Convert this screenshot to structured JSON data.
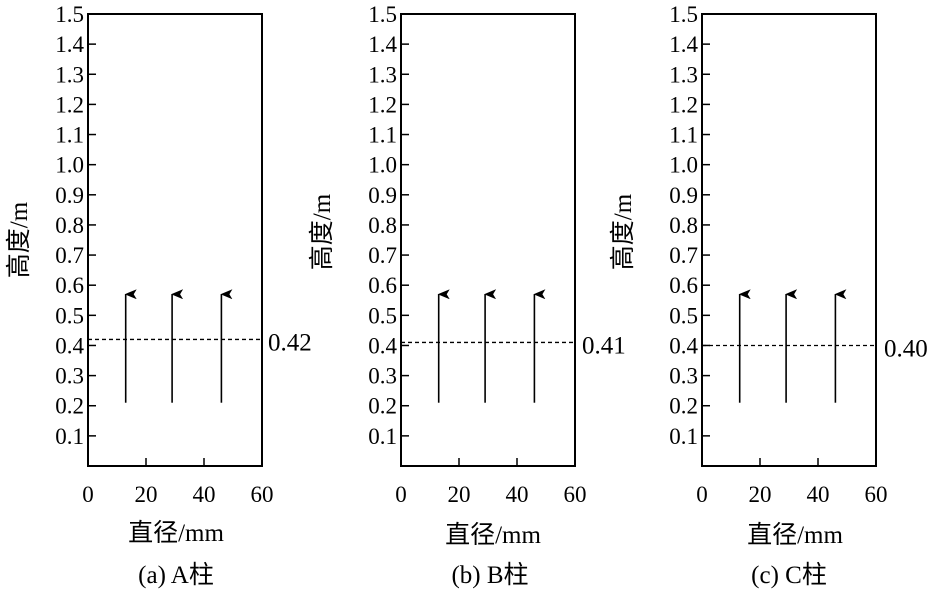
{
  "chart_data": [
    {
      "type": "line",
      "caption": "(a) A柱",
      "xlabel": "直径/mm",
      "ylabel": "高度/m",
      "xlim": [
        0,
        60
      ],
      "ylim": [
        0,
        1.5
      ],
      "xticks": [
        "0",
        "20",
        "40",
        "60"
      ],
      "yticks": [
        "0.1",
        "0.2",
        "0.3",
        "0.4",
        "0.5",
        "0.6",
        "0.7",
        "0.8",
        "0.9",
        "1.0",
        "1.1",
        "1.2",
        "1.3",
        "1.4",
        "1.5"
      ],
      "arrows": [
        {
          "x": 13,
          "from": 0.21,
          "to": 0.57
        },
        {
          "x": 29,
          "from": 0.21,
          "to": 0.57
        },
        {
          "x": 46,
          "from": 0.21,
          "to": 0.57
        }
      ],
      "level": 0.42,
      "level_label": "0.42",
      "grid": false
    },
    {
      "type": "line",
      "caption": "(b) B柱",
      "xlabel": "直径/mm",
      "ylabel": "高度/m",
      "xlim": [
        0,
        60
      ],
      "ylim": [
        0,
        1.5
      ],
      "xticks": [
        "0",
        "20",
        "40",
        "60"
      ],
      "yticks": [
        "0.1",
        "0.2",
        "0.3",
        "0.4",
        "0.5",
        "0.6",
        "0.7",
        "0.8",
        "0.9",
        "1.0",
        "1.1",
        "1.2",
        "1.3",
        "1.4",
        "1.5"
      ],
      "arrows": [
        {
          "x": 13,
          "from": 0.21,
          "to": 0.57
        },
        {
          "x": 29,
          "from": 0.21,
          "to": 0.57
        },
        {
          "x": 46,
          "from": 0.21,
          "to": 0.57
        }
      ],
      "level": 0.41,
      "level_label": "0.41",
      "grid": false
    },
    {
      "type": "line",
      "caption": "(c) C柱",
      "xlabel": "直径/mm",
      "ylabel": "高度/m",
      "xlim": [
        0,
        60
      ],
      "ylim": [
        0,
        1.5
      ],
      "xticks": [
        "0",
        "20",
        "40",
        "60"
      ],
      "yticks": [
        "0.1",
        "0.2",
        "0.3",
        "0.4",
        "0.5",
        "0.6",
        "0.7",
        "0.8",
        "0.9",
        "1.0",
        "1.1",
        "1.2",
        "1.3",
        "1.4",
        "1.5"
      ],
      "arrows": [
        {
          "x": 13,
          "from": 0.21,
          "to": 0.57
        },
        {
          "x": 29,
          "from": 0.21,
          "to": 0.57
        },
        {
          "x": 46,
          "from": 0.21,
          "to": 0.57
        }
      ],
      "level": 0.4,
      "level_label": "0.40",
      "grid": false
    }
  ]
}
